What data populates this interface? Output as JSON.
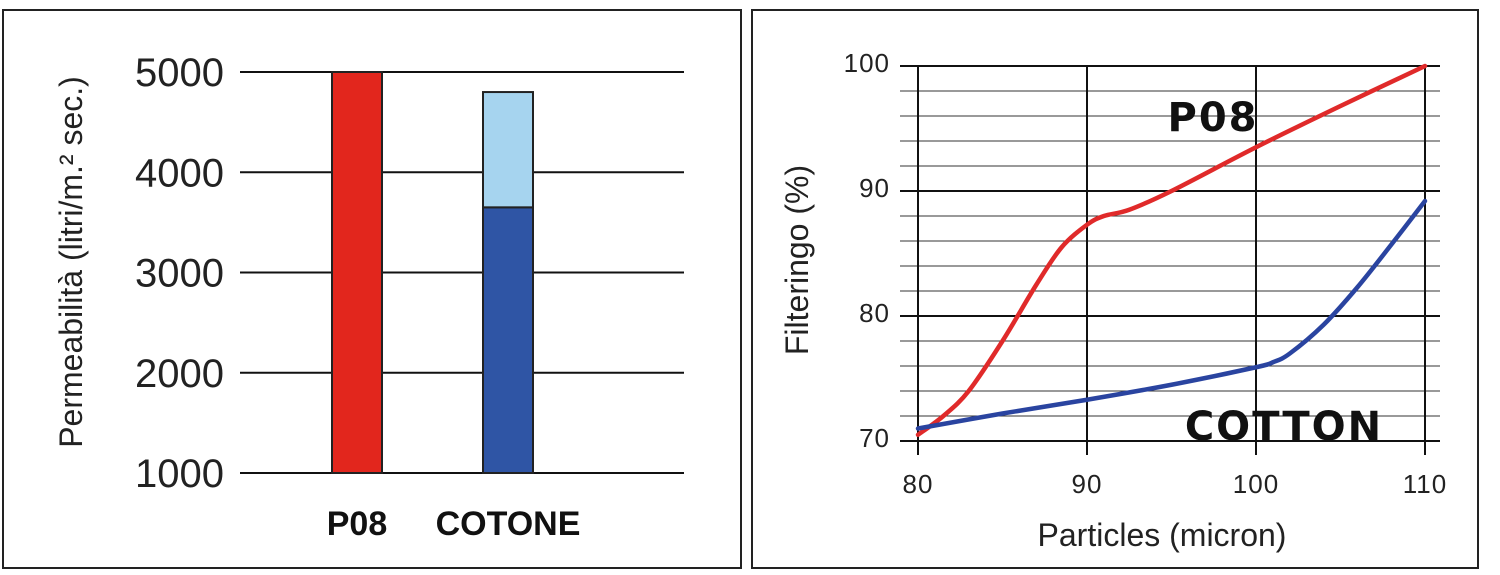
{
  "chart_data": [
    {
      "type": "bar",
      "stacked": true,
      "ylabel": "Permeabilità (litri/m.² sec.)",
      "ylim": [
        1000,
        5000
      ],
      "yticks": [
        "1000",
        "2000",
        "3000",
        "4000",
        "5000"
      ],
      "ytick_values": [
        1000,
        2000,
        3000,
        4000,
        5000
      ],
      "grid": true,
      "categories": [
        "P08",
        "COTONE"
      ],
      "bars": [
        {
          "category": "P08",
          "segments": [
            {
              "from": 1000,
              "to": 5000,
              "color": "#e2261d"
            }
          ]
        },
        {
          "category": "COTONE",
          "segments": [
            {
              "from": 1000,
              "to": 3650,
              "color": "#2f55a5"
            },
            {
              "from": 3650,
              "to": 4800,
              "color": "#a6d4ef"
            }
          ]
        }
      ]
    },
    {
      "type": "line",
      "xlabel": "Particles (micron)",
      "ylabel": "Filteringo (%)",
      "xlim": [
        80,
        110
      ],
      "ylim": [
        70,
        100
      ],
      "xticks": [
        "80",
        "90",
        "100",
        "110"
      ],
      "xtick_values": [
        80,
        90,
        100,
        110
      ],
      "yticks": [
        "70",
        "80",
        "90",
        "100"
      ],
      "ytick_values": [
        70,
        80,
        90,
        100
      ],
      "grid": true,
      "series": [
        {
          "name": "P08",
          "color": "#e02a2a",
          "x": [
            80,
            81.5,
            83,
            85,
            87,
            88.5,
            90,
            91,
            92.5,
            95,
            100,
            105,
            110
          ],
          "y": [
            70.5,
            72.0,
            74.0,
            78.0,
            82.5,
            85.5,
            87.3,
            88.0,
            88.5,
            90.0,
            93.5,
            96.8,
            100.0
          ]
        },
        {
          "name": "COTTON",
          "color": "#2a44a0",
          "x": [
            80,
            85,
            90,
            95,
            100,
            101,
            102,
            104,
            106,
            108,
            110
          ],
          "y": [
            71.0,
            72.2,
            73.3,
            74.5,
            75.9,
            76.3,
            77.0,
            79.3,
            82.3,
            85.7,
            89.2
          ]
        }
      ]
    }
  ]
}
